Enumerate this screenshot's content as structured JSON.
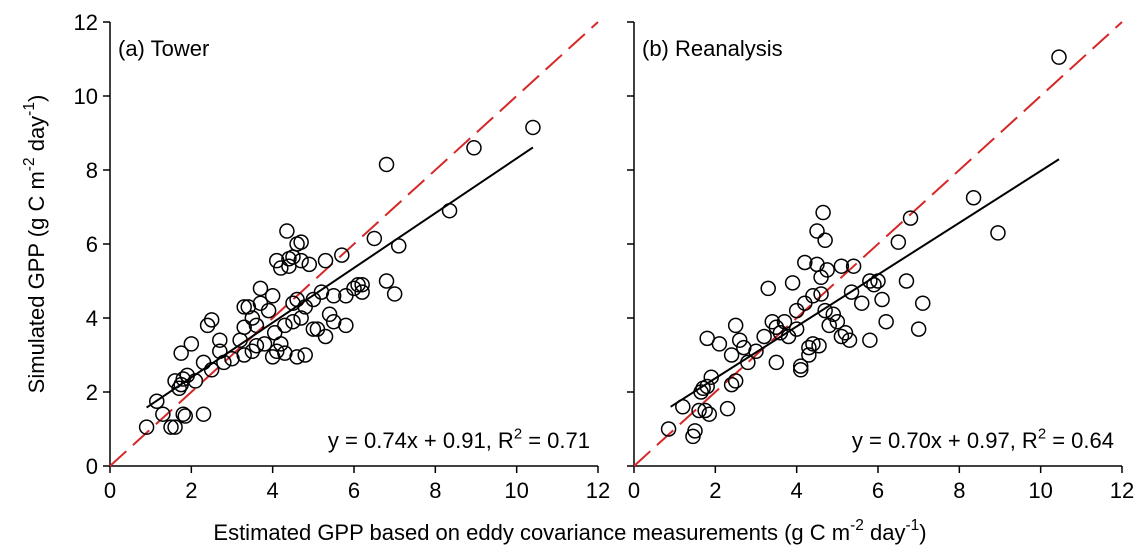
{
  "chart_data": [
    {
      "type": "scatter",
      "title": "(a) Tower",
      "ylabel": [
        "Simulated GPP (g C m",
        "-2",
        " day",
        "-1",
        ")"
      ],
      "annotation": [
        "y = 0.74x + 0.91, R",
        "2",
        " = 0.71"
      ],
      "xlim": [
        0,
        12
      ],
      "ylim": [
        0,
        12
      ],
      "xticks": [
        0,
        2,
        4,
        6,
        8,
        10,
        12
      ],
      "yticks": [
        0,
        2,
        4,
        6,
        8,
        10,
        12
      ],
      "show_ytick_labels": true,
      "color": "#000000",
      "identity_color": "#d62728",
      "fit_line": {
        "x": [
          0.9,
          10.4
        ],
        "y": [
          1.58,
          8.61
        ]
      },
      "x": [
        0.9,
        1.15,
        1.3,
        1.5,
        1.6,
        1.6,
        1.7,
        1.75,
        1.8,
        1.8,
        1.85,
        1.75,
        1.9,
        2.0,
        2.1,
        2.3,
        2.3,
        2.4,
        2.5,
        2.5,
        2.7,
        2.7,
        2.8,
        3.0,
        3.2,
        3.3,
        3.3,
        3.3,
        3.4,
        3.5,
        3.5,
        3.6,
        3.6,
        3.7,
        3.7,
        3.8,
        3.9,
        4.0,
        4.0,
        4.05,
        4.1,
        4.1,
        4.2,
        4.2,
        4.3,
        4.3,
        4.35,
        4.4,
        4.4,
        4.5,
        4.5,
        4.5,
        4.6,
        4.6,
        4.6,
        4.7,
        4.7,
        4.7,
        4.8,
        4.8,
        4.9,
        5.0,
        5.0,
        5.1,
        5.2,
        5.3,
        5.3,
        5.4,
        5.5,
        5.5,
        5.7,
        5.8,
        5.8,
        6.0,
        6.1,
        6.2,
        6.2,
        6.5,
        6.8,
        6.8,
        7.0,
        7.1,
        8.35,
        8.95,
        10.4
      ],
      "values": [
        1.05,
        1.75,
        1.4,
        1.05,
        1.05,
        2.3,
        2.1,
        2.2,
        2.35,
        1.4,
        1.35,
        3.05,
        2.45,
        3.3,
        2.3,
        1.4,
        2.8,
        3.8,
        3.95,
        2.6,
        3.1,
        3.4,
        2.8,
        2.9,
        3.4,
        3.0,
        3.75,
        4.3,
        4.3,
        3.1,
        4.0,
        3.25,
        3.8,
        4.4,
        4.8,
        3.3,
        4.2,
        2.95,
        4.6,
        3.6,
        5.55,
        3.1,
        3.3,
        5.35,
        3.8,
        3.05,
        6.35,
        5.6,
        5.4,
        4.4,
        3.9,
        5.65,
        6.0,
        2.95,
        4.5,
        5.55,
        6.05,
        4.0,
        3.0,
        4.3,
        5.45,
        4.5,
        3.7,
        3.7,
        4.7,
        5.55,
        3.5,
        4.1,
        3.9,
        4.6,
        5.7,
        3.8,
        4.6,
        4.8,
        4.9,
        4.7,
        4.9,
        6.15,
        8.15,
        5.0,
        4.65,
        5.95,
        6.9,
        8.6,
        9.15
      ]
    },
    {
      "type": "scatter",
      "title": "(b) Reanalysis",
      "annotation": [
        "y = 0.70x + 0.97, R",
        "2",
        " = 0.64"
      ],
      "xlim": [
        0,
        12
      ],
      "ylim": [
        0,
        12
      ],
      "xticks": [
        0,
        2,
        4,
        6,
        8,
        10,
        12
      ],
      "yticks": [
        0,
        2,
        4,
        6,
        8,
        10,
        12
      ],
      "show_ytick_labels": false,
      "color": "#000000",
      "identity_color": "#d62728",
      "fit_line": {
        "x": [
          0.9,
          10.45
        ],
        "y": [
          1.6,
          8.29
        ]
      },
      "x": [
        0.85,
        1.2,
        1.45,
        1.5,
        1.6,
        1.65,
        1.7,
        1.75,
        1.8,
        1.8,
        1.85,
        1.9,
        2.1,
        2.3,
        2.4,
        2.4,
        2.5,
        2.5,
        2.6,
        2.7,
        2.8,
        3.0,
        3.2,
        3.3,
        3.4,
        3.5,
        3.5,
        3.6,
        3.7,
        3.8,
        3.9,
        4.0,
        4.0,
        4.1,
        4.1,
        4.2,
        4.2,
        4.3,
        4.3,
        4.4,
        4.4,
        4.5,
        4.5,
        4.55,
        4.6,
        4.6,
        4.65,
        4.7,
        4.7,
        4.75,
        4.8,
        4.9,
        5.0,
        5.1,
        5.1,
        5.2,
        5.3,
        5.35,
        5.4,
        5.6,
        5.8,
        5.8,
        5.9,
        6.0,
        6.1,
        6.2,
        6.5,
        6.7,
        6.8,
        7.0,
        7.1,
        8.35,
        8.95,
        10.45
      ],
      "values": [
        1.0,
        1.6,
        0.8,
        0.95,
        1.5,
        2.0,
        2.1,
        1.5,
        2.15,
        3.45,
        1.4,
        2.4,
        3.3,
        1.55,
        2.2,
        3.0,
        3.8,
        2.3,
        3.4,
        3.2,
        2.8,
        3.1,
        3.5,
        4.8,
        3.9,
        2.8,
        3.75,
        3.6,
        3.9,
        3.5,
        4.95,
        4.2,
        3.7,
        2.7,
        2.6,
        5.5,
        4.4,
        3.0,
        3.2,
        3.3,
        4.6,
        5.45,
        6.35,
        3.25,
        5.1,
        4.65,
        6.85,
        4.2,
        6.1,
        5.3,
        3.8,
        4.1,
        3.9,
        3.5,
        5.4,
        3.6,
        3.4,
        4.7,
        5.4,
        4.4,
        3.4,
        5.0,
        4.9,
        5.0,
        4.5,
        3.9,
        6.05,
        5.0,
        6.7,
        3.7,
        4.4,
        7.25,
        6.3,
        11.05
      ]
    }
  ],
  "xlabel": [
    "Estimated GPP based on eddy covariance measurements (g C m",
    "-2",
    " day",
    "-1",
    ")"
  ]
}
